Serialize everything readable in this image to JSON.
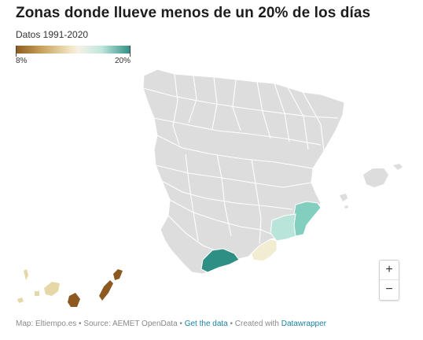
{
  "header": {
    "title": "Zonas donde llueve menos de un 20% de los días",
    "subtitle": "Datos 1991-2020"
  },
  "legend": {
    "min_label": "8%",
    "max_label": "20%",
    "min_value": 8,
    "max_value": 20,
    "colors": [
      "#8c5a20",
      "#c8a05a",
      "#f2e6c4",
      "#bfe6dd",
      "#2e8f84"
    ]
  },
  "map": {
    "type": "choropleth",
    "region": "Spain",
    "base_color": "#dddddd",
    "highlighted_zones": [
      {
        "zone": "Alicante/Murcia coast",
        "color": "#82cfc0"
      },
      {
        "zone": "Murcia interior",
        "color": "#b9e4da"
      },
      {
        "zone": "Almería",
        "color": "#f2ecd2"
      },
      {
        "zone": "Málaga",
        "color": "#2e8f84"
      },
      {
        "zone": "Canarias west",
        "color": "#e6d7a6"
      },
      {
        "zone": "Gran Canaria",
        "color": "#8c5a20"
      },
      {
        "zone": "Fuerteventura/Lanzarote",
        "color": "#8c5a20"
      }
    ]
  },
  "zoom": {
    "in_label": "+",
    "out_label": "−"
  },
  "footer": {
    "source_text": "Map: Eltiempo.es • Source: AEMET OpenData • ",
    "get_data": "Get the data",
    "created_with": " • Created with ",
    "tool": "Datawrapper"
  }
}
